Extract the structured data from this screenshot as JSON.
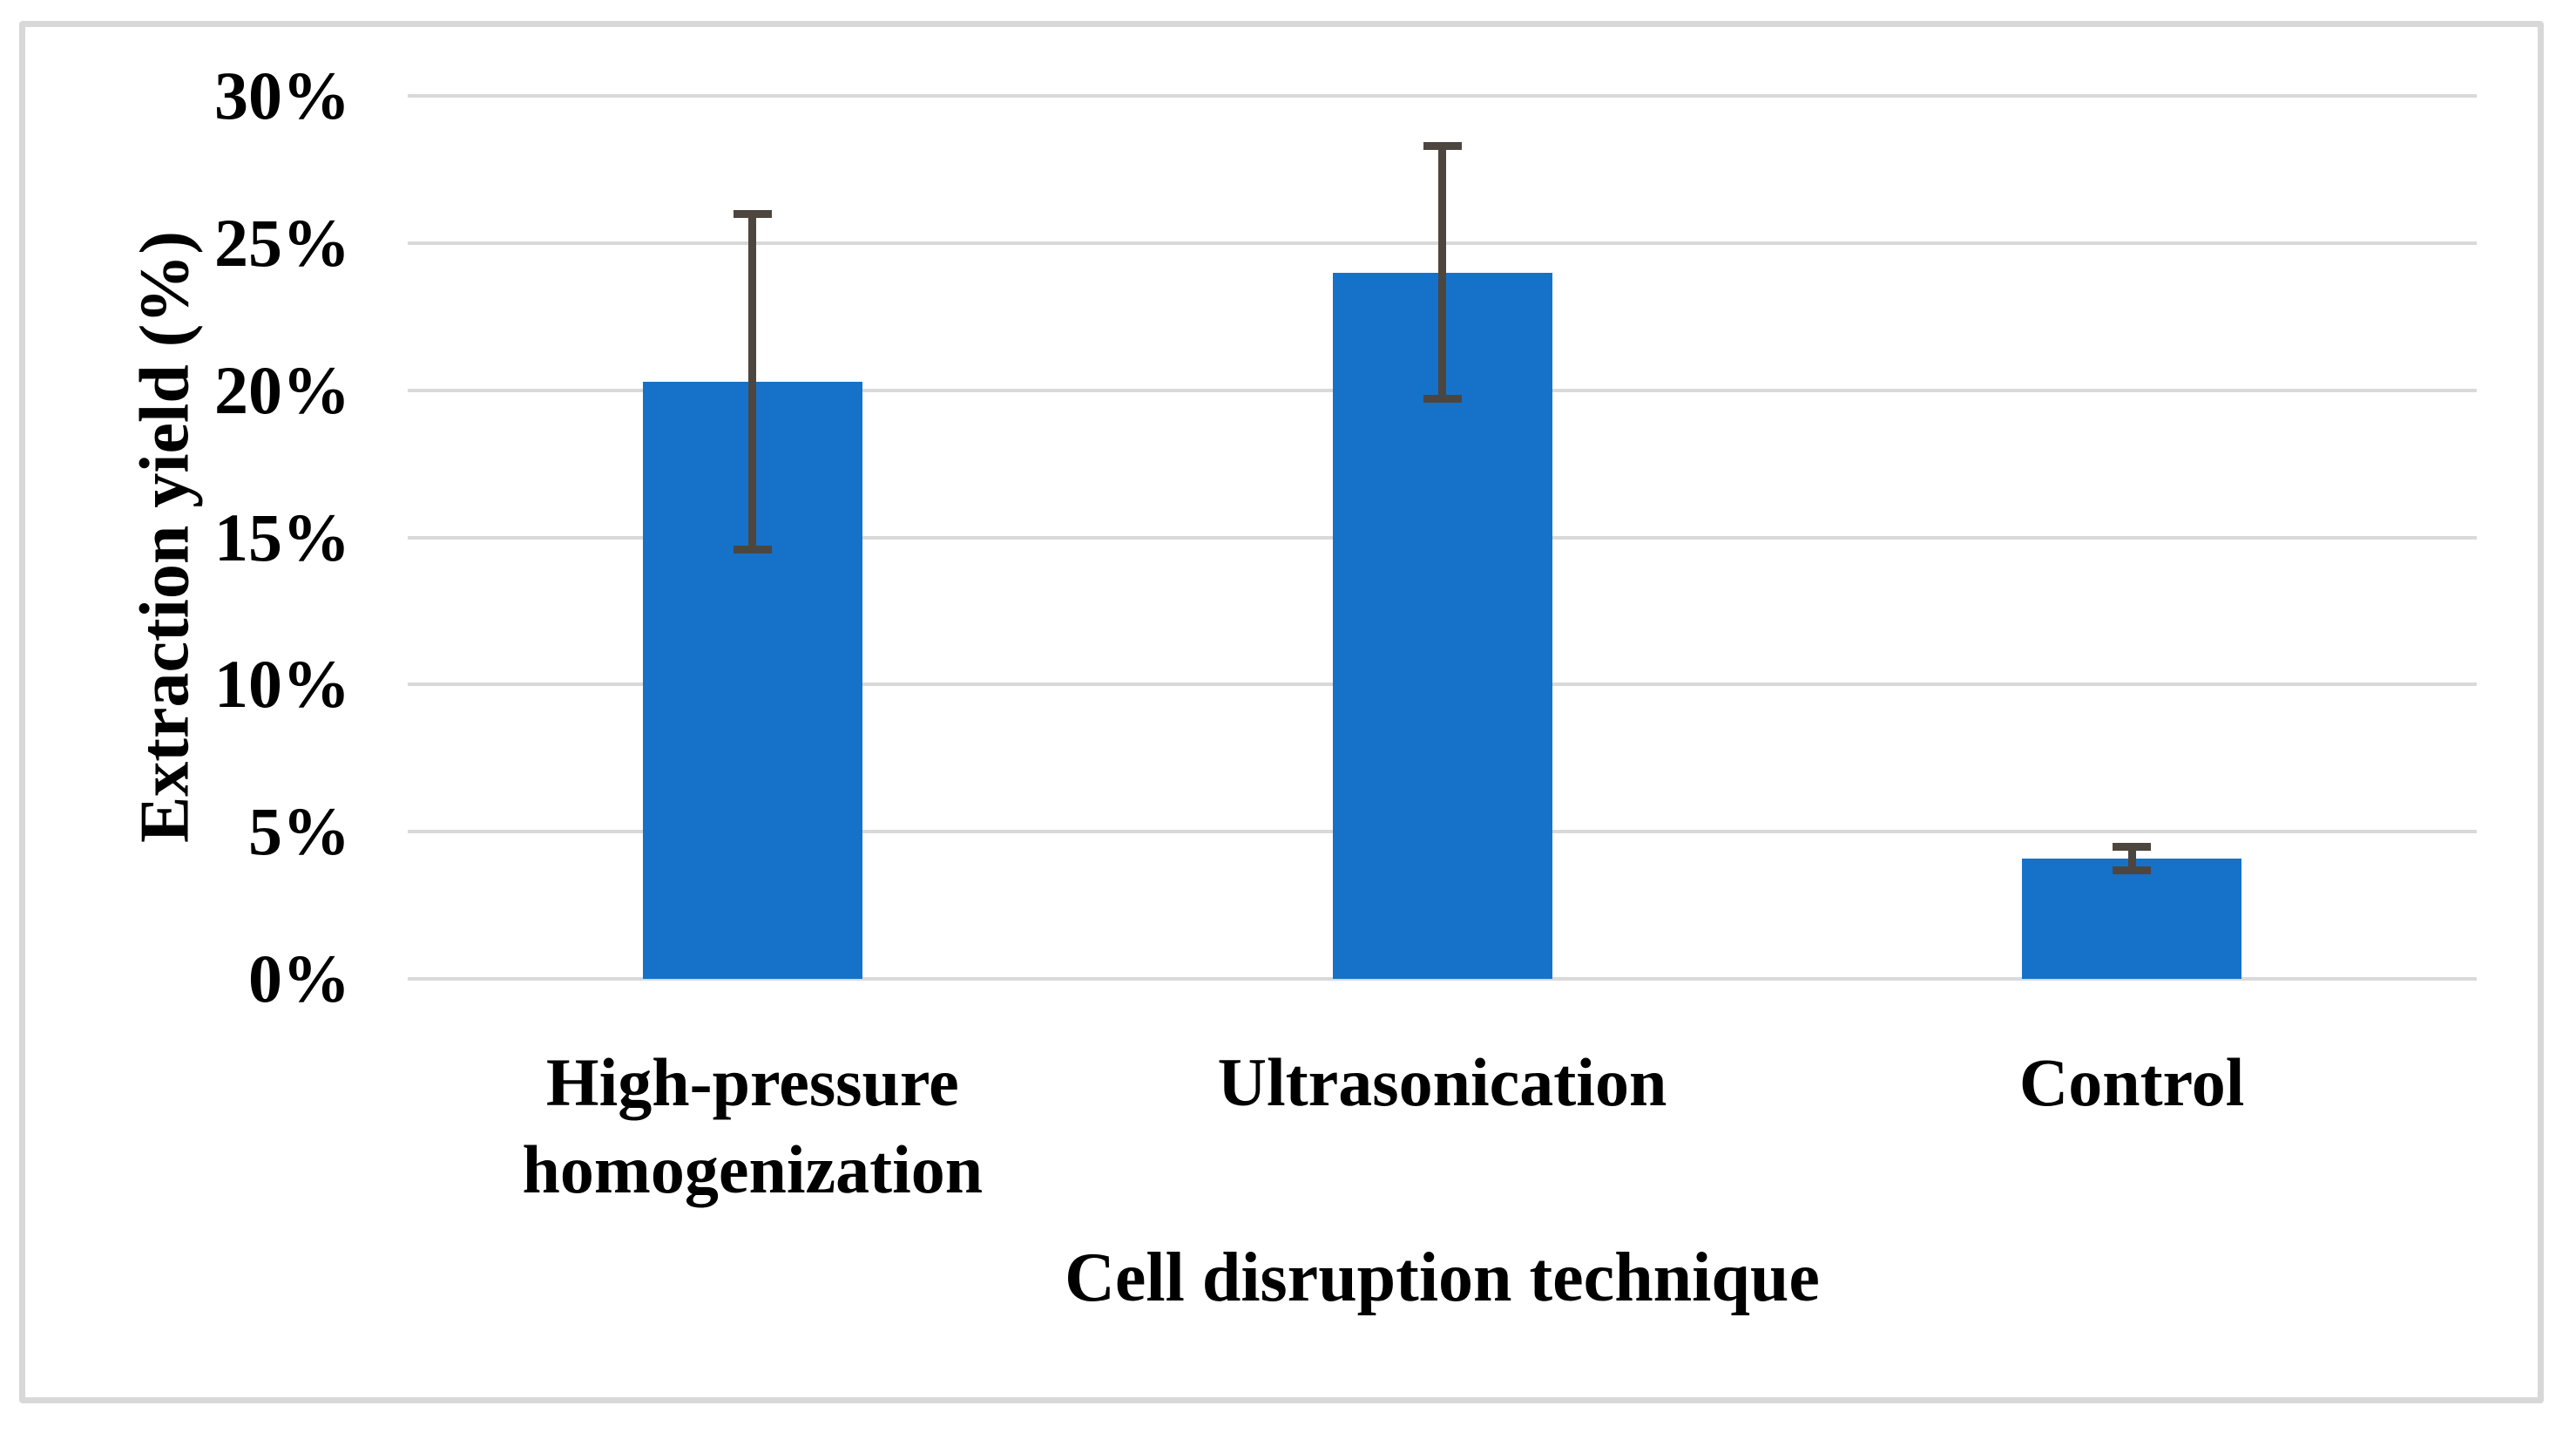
{
  "figure": {
    "background_color": "#ffffff",
    "border_color": "#d8d8d8"
  },
  "chart_data": {
    "type": "bar",
    "title": "",
    "categories": [
      "High-pressure homogenization",
      "Ultrasonication",
      "Control"
    ],
    "category_label_lines": [
      [
        "High-pressure",
        "homogenization"
      ],
      [
        "Ultrasonication"
      ],
      [
        "Control"
      ]
    ],
    "series": [
      {
        "name": "Extraction yield",
        "values": [
          20.3,
          24.0,
          4.1
        ],
        "error_bars_plus_minus": [
          5.7,
          4.3,
          0.4
        ]
      }
    ],
    "xlabel": "Cell disruption technique",
    "ylabel": "Extraction yield (%)",
    "ylim": [
      0,
      30
    ],
    "ytick_values": [
      0,
      5,
      10,
      15,
      20,
      25,
      30
    ],
    "ytick_labels": [
      "0%",
      "5%",
      "10%",
      "15%",
      "20%",
      "25%",
      "30%"
    ],
    "grid": "horizontal",
    "legend": "none",
    "bar_color": "#1572c8",
    "error_bar_color": "#4d463f",
    "gridline_color": "#d9d9d9"
  }
}
